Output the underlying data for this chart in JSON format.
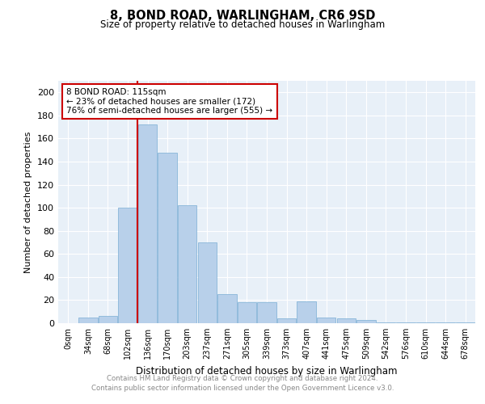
{
  "title": "8, BOND ROAD, WARLINGHAM, CR6 9SD",
  "subtitle": "Size of property relative to detached houses in Warlingham",
  "xlabel": "Distribution of detached houses by size in Warlingham",
  "ylabel": "Number of detached properties",
  "bar_color": "#b8d0ea",
  "bar_edge_color": "#7aadd4",
  "background_color": "#e8f0f8",
  "grid_color": "#ffffff",
  "categories": [
    "0sqm",
    "34sqm",
    "68sqm",
    "102sqm",
    "136sqm",
    "170sqm",
    "203sqm",
    "237sqm",
    "271sqm",
    "305sqm",
    "339sqm",
    "373sqm",
    "407sqm",
    "441sqm",
    "475sqm",
    "509sqm",
    "542sqm",
    "576sqm",
    "610sqm",
    "644sqm",
    "678sqm"
  ],
  "values": [
    0,
    5,
    6,
    100,
    172,
    148,
    102,
    70,
    25,
    18,
    18,
    4,
    19,
    5,
    4,
    3,
    1,
    1,
    1,
    1,
    1
  ],
  "annotation_text": "8 BOND ROAD: 115sqm\n← 23% of detached houses are smaller (172)\n76% of semi-detached houses are larger (555) →",
  "annotation_box_color": "#ffffff",
  "annotation_border_color": "#cc0000",
  "red_line_color": "#cc0000",
  "ylim": [
    0,
    210
  ],
  "yticks": [
    0,
    20,
    40,
    60,
    80,
    100,
    120,
    140,
    160,
    180,
    200
  ],
  "footer_line1": "Contains HM Land Registry data © Crown copyright and database right 2024.",
  "footer_line2": "Contains public sector information licensed under the Open Government Licence v3.0."
}
